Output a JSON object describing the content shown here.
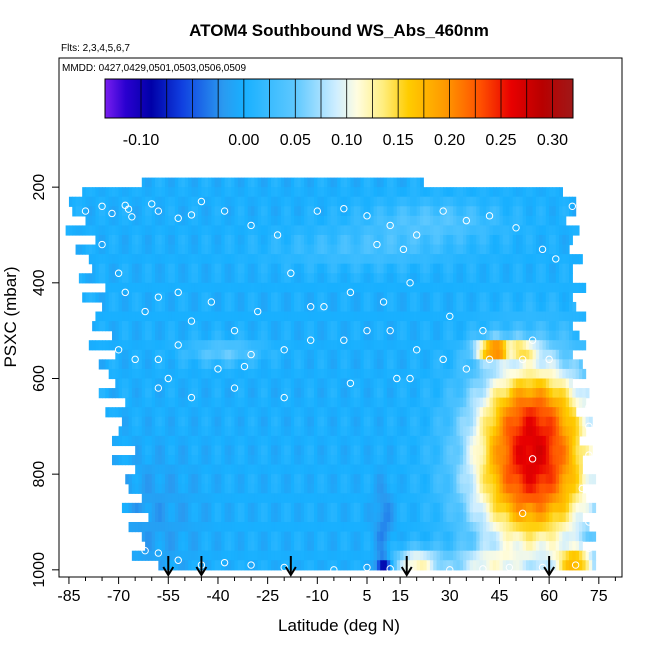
{
  "chart_data": {
    "type": "heatmap",
    "title": "ATOM4 Southbound WS_Abs_460nm",
    "subtitle_flights": "Flts: 2,3,4,5,6,7",
    "subtitle_dates": "MMDD: 0427,0429,0501,0503,0506,0509",
    "xlabel": "Latitude (deg N)",
    "ylabel": "PSXC (mbar)",
    "xlim": [
      -88,
      82
    ],
    "ylim": [
      1015,
      -70
    ],
    "x_ticks": [
      -85,
      -70,
      -55,
      -40,
      -25,
      -10,
      5,
      15,
      30,
      45,
      60,
      75
    ],
    "x_minor_ticks": [
      -80,
      -75,
      -65,
      -60,
      -50,
      -45,
      -35,
      -30,
      -20,
      -15,
      -5,
      0,
      10,
      20,
      25,
      35,
      40,
      50,
      55,
      65,
      70,
      80
    ],
    "y_ticks": [
      200,
      400,
      600,
      800,
      1000
    ],
    "colorbar": {
      "ticks": [
        "-0.10",
        "0.00",
        "0.05",
        "0.10",
        "0.15",
        "0.20",
        "0.25",
        "0.30"
      ],
      "tick_values": [
        -0.1,
        0.0,
        0.05,
        0.1,
        0.15,
        0.2,
        0.25,
        0.3
      ],
      "range": [
        -0.135,
        0.32
      ],
      "colors": [
        "#7a1ef0",
        "#2a00d0",
        "#0000a8",
        "#1040e0",
        "#2a9af0",
        "#18b0ff",
        "#5ec8ff",
        "#cfeeff",
        "#fffde0",
        "#ffee80",
        "#ffcc00",
        "#ff9a00",
        "#ff5000",
        "#e80000",
        "#b80000",
        "#a01818"
      ],
      "color_stops": [
        -0.135,
        -0.115,
        -0.09,
        -0.06,
        -0.02,
        0.0,
        0.05,
        0.09,
        0.11,
        0.135,
        0.16,
        0.195,
        0.23,
        0.26,
        0.29,
        0.32
      ]
    },
    "field": {
      "base_value": 0.0,
      "max_pressure_by_latitude": [
        [
          -65,
          960
        ],
        [
          -60,
          1000
        ],
        [
          75,
          1000
        ]
      ],
      "min_pressure_by_latitude": [
        [
          -70,
          220
        ],
        [
          -55,
          175
        ],
        [
          68,
          215
        ],
        [
          72,
          230
        ]
      ],
      "features": [
        {
          "lat": 55,
          "p": 780,
          "lat_half_width": 13,
          "p_half_width": 130,
          "amplitude": 0.26
        },
        {
          "lat": 55,
          "p": 650,
          "lat_half_width": 10,
          "p_half_width": 60,
          "amplitude": 0.06
        },
        {
          "lat": 43,
          "p": 540,
          "lat_half_width": 4,
          "p_half_width": 15,
          "amplitude": 0.16
        },
        {
          "lat": 50,
          "p": 540,
          "lat_half_width": 5,
          "p_half_width": 15,
          "amplitude": 0.1
        },
        {
          "lat": 20,
          "p": 985,
          "lat_half_width": 5,
          "p_half_width": 20,
          "amplitude": 0.12
        },
        {
          "lat": 40,
          "p": 985,
          "lat_half_width": 8,
          "p_half_width": 20,
          "amplitude": 0.07
        },
        {
          "lat": 68,
          "p": 985,
          "lat_half_width": 4,
          "p_half_width": 20,
          "amplitude": 0.14
        },
        {
          "lat": -38,
          "p": 545,
          "lat_half_width": 8,
          "p_half_width": 18,
          "amplitude": 0.05
        },
        {
          "lat": 25,
          "p": 270,
          "lat_half_width": 15,
          "p_half_width": 30,
          "amplitude": 0.04
        },
        {
          "lat": 5,
          "p": 330,
          "lat_half_width": 20,
          "p_half_width": 30,
          "amplitude": 0.03
        },
        {
          "lat": 10,
          "p": 990,
          "lat_half_width": 1.5,
          "p_half_width": 12,
          "amplitude": -0.1
        },
        {
          "lat": 10,
          "p": 900,
          "lat_half_width": 2,
          "p_half_width": 60,
          "amplitude": -0.03
        },
        {
          "lat": 48,
          "p": 545,
          "lat_half_width": 1.5,
          "p_half_width": 15,
          "amplitude": -0.08
        },
        {
          "lat": -60,
          "p": 890,
          "lat_half_width": 10,
          "p_half_width": 100,
          "amplitude": -0.015
        }
      ]
    },
    "observation_points": [
      [
        -80,
        250
      ],
      [
        -75,
        240
      ],
      [
        -72,
        255
      ],
      [
        -68,
        238
      ],
      [
        -67,
        246
      ],
      [
        -66,
        262
      ],
      [
        -60,
        235
      ],
      [
        -58,
        250
      ],
      [
        -52,
        265
      ],
      [
        -48,
        258
      ],
      [
        -45,
        230
      ],
      [
        -38,
        250
      ],
      [
        -30,
        280
      ],
      [
        -22,
        300
      ],
      [
        -10,
        250
      ],
      [
        -2,
        245
      ],
      [
        5,
        260
      ],
      [
        12,
        280
      ],
      [
        20,
        300
      ],
      [
        28,
        250
      ],
      [
        35,
        270
      ],
      [
        42,
        260
      ],
      [
        50,
        285
      ],
      [
        58,
        330
      ],
      [
        62,
        350
      ],
      [
        67,
        240
      ],
      [
        -75,
        320
      ],
      [
        -70,
        380
      ],
      [
        -68,
        420
      ],
      [
        -62,
        460
      ],
      [
        -58,
        430
      ],
      [
        -52,
        420
      ],
      [
        -48,
        480
      ],
      [
        -42,
        440
      ],
      [
        -35,
        500
      ],
      [
        -28,
        460
      ],
      [
        -18,
        380
      ],
      [
        -8,
        450
      ],
      [
        0,
        420
      ],
      [
        10,
        440
      ],
      [
        18,
        400
      ],
      [
        30,
        470
      ],
      [
        40,
        500
      ],
      [
        55,
        520
      ],
      [
        -78,
        510
      ],
      [
        -70,
        540
      ],
      [
        -65,
        560
      ],
      [
        -58,
        560
      ],
      [
        -52,
        530
      ],
      [
        -40,
        580
      ],
      [
        -30,
        550
      ],
      [
        -20,
        540
      ],
      [
        -12,
        520
      ],
      [
        -2,
        520
      ],
      [
        5,
        500
      ],
      [
        12,
        500
      ],
      [
        20,
        540
      ],
      [
        28,
        560
      ],
      [
        35,
        580
      ],
      [
        42,
        560
      ],
      [
        52,
        560
      ],
      [
        60,
        560
      ],
      [
        -55,
        600
      ],
      [
        -48,
        640
      ],
      [
        -35,
        620
      ],
      [
        -20,
        640
      ],
      [
        0,
        610
      ],
      [
        14,
        600
      ],
      [
        18,
        600
      ],
      [
        72,
        610
      ],
      [
        72,
        660
      ],
      [
        72,
        700
      ],
      [
        72,
        760
      ],
      [
        70,
        830
      ],
      [
        72,
        900
      ],
      [
        -72,
        930
      ],
      [
        -68,
        950
      ],
      [
        -62,
        960
      ],
      [
        -58,
        965
      ],
      [
        -52,
        980
      ],
      [
        -45,
        990
      ],
      [
        -38,
        985
      ],
      [
        -30,
        990
      ],
      [
        -20,
        995
      ],
      [
        -5,
        1000
      ],
      [
        5,
        995
      ],
      [
        12,
        998
      ],
      [
        18,
        1000
      ],
      [
        30,
        1000
      ],
      [
        40,
        998
      ],
      [
        48,
        995
      ],
      [
        58,
        995
      ],
      [
        68,
        990
      ],
      [
        55,
        768
      ],
      [
        52,
        882
      ],
      [
        72,
        955
      ],
      [
        -58,
        620
      ],
      [
        -32,
        575
      ],
      [
        -12,
        450
      ],
      [
        8,
        320
      ],
      [
        16,
        330
      ]
    ],
    "arrows_latitude": [
      -55,
      -45,
      -18,
      17,
      60
    ]
  }
}
